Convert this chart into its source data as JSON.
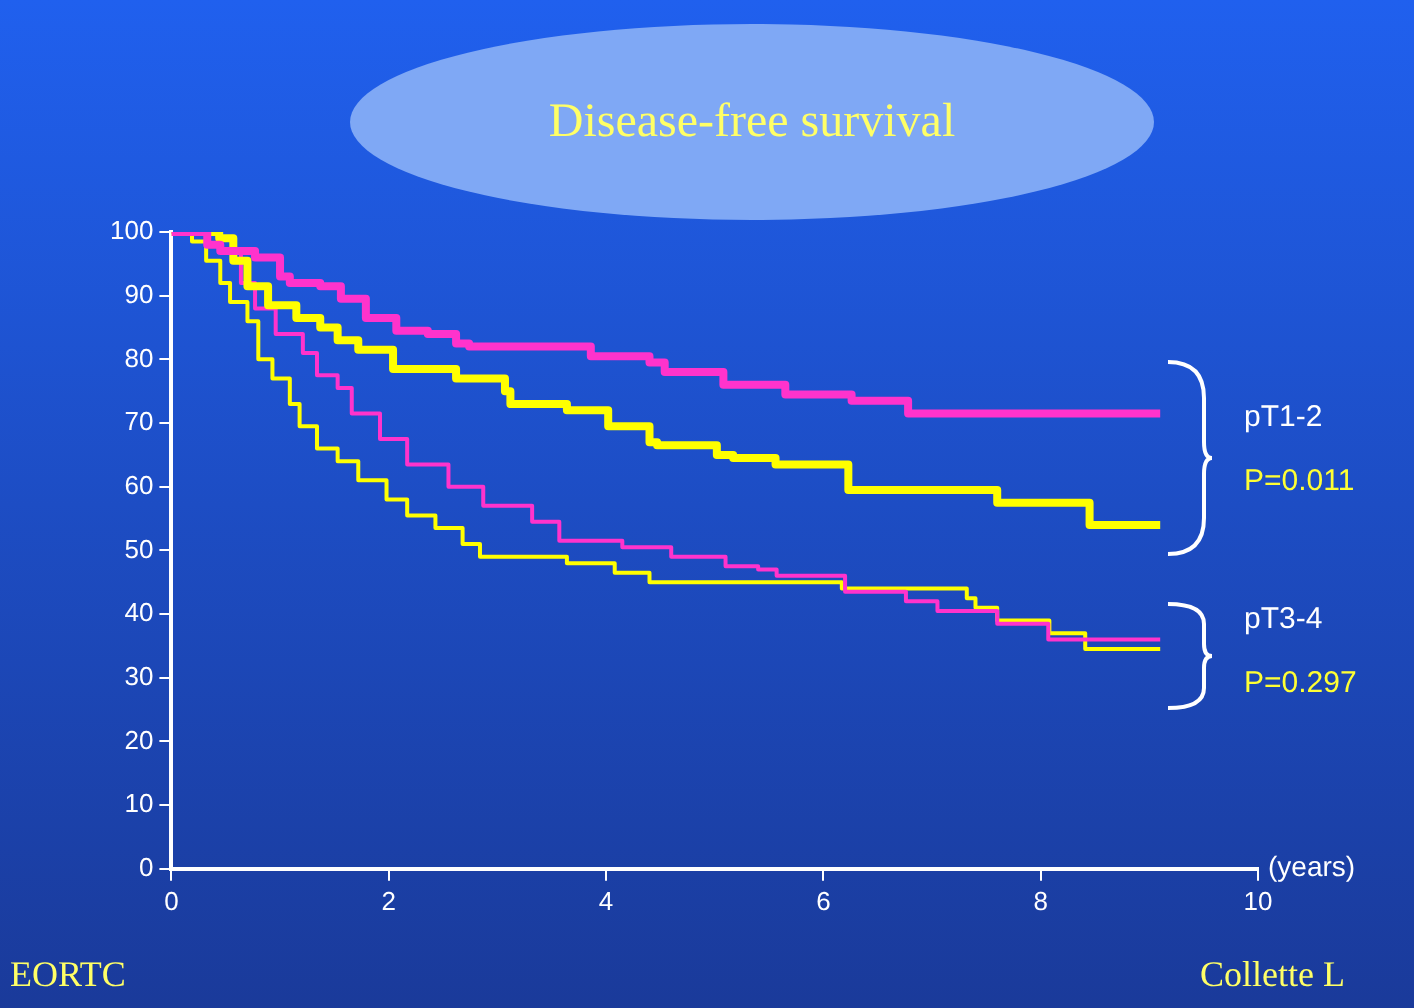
{
  "chart_data": {
    "type": "step",
    "title": "Disease-free survival",
    "xlabel": "(years)",
    "xlim": [
      0,
      10
    ],
    "xticks": [
      0,
      2,
      4,
      6,
      8,
      10
    ],
    "ylim": [
      0,
      100
    ],
    "yticks": [
      0,
      10,
      20,
      30,
      40,
      50,
      60,
      70,
      80,
      90,
      100
    ],
    "grid": false,
    "legend": false,
    "marker": "none",
    "line_style": "solid",
    "annotations": [
      "pT1-2",
      "P=0.011",
      "pT3-4",
      "P=0.297",
      "EORTC",
      "Collette L"
    ],
    "series": [
      {
        "color": "#ff33cc",
        "x": [
          0,
          0.33,
          0.45,
          0.77,
          1.0,
          1.09,
          1.37,
          1.56,
          1.79,
          2.07,
          2.36,
          2.62,
          2.74,
          3.86,
          4.4,
          4.54,
          5.08,
          5.65,
          6.26,
          6.78,
          9.1
        ],
        "values": [
          100,
          98,
          97,
          96,
          93,
          92,
          91.5,
          89.5,
          86.5,
          84.5,
          84,
          82.5,
          82,
          80.5,
          79.5,
          78,
          76,
          74.5,
          73.5,
          71.5,
          71.5
        ]
      },
      {
        "color": "#ffff00",
        "x": [
          0,
          0.44,
          0.57,
          0.7,
          0.89,
          1.15,
          1.37,
          1.53,
          1.72,
          2.04,
          2.62,
          3.07,
          3.12,
          3.64,
          4.02,
          4.4,
          4.47,
          5.02,
          5.17,
          5.56,
          6.23,
          7.6,
          8.45,
          9.1
        ],
        "values": [
          100,
          99,
          95.5,
          91.5,
          88.5,
          86.5,
          85,
          83,
          81.5,
          78.5,
          77,
          75,
          73,
          72,
          69.5,
          67,
          66.5,
          65,
          64.5,
          63.5,
          59.5,
          57.5,
          54,
          54
        ]
      },
      {
        "color": "#ff33cc",
        "x": [
          0,
          0.45,
          0.64,
          0.77,
          0.96,
          1.21,
          1.34,
          1.53,
          1.66,
          1.92,
          2.17,
          2.55,
          2.87,
          3.32,
          3.57,
          4.15,
          4.6,
          5.1,
          5.4,
          5.57,
          6.2,
          6.76,
          7.05,
          7.6,
          8.07,
          9.1
        ],
        "values": [
          100,
          97,
          92,
          88,
          84,
          81,
          77.5,
          75.5,
          71.5,
          67.5,
          63.5,
          60,
          57,
          54.5,
          51.5,
          50.5,
          49,
          47.5,
          47,
          46,
          43.5,
          42,
          40.5,
          38.5,
          36,
          36
        ]
      },
      {
        "color": "#ffff00",
        "x": [
          0,
          0.19,
          0.32,
          0.45,
          0.54,
          0.7,
          0.8,
          0.93,
          1.09,
          1.18,
          1.34,
          1.53,
          1.72,
          1.98,
          2.17,
          2.43,
          2.68,
          2.84,
          3.64,
          4.08,
          4.4,
          6.17,
          7.32,
          7.4,
          7.6,
          8.08,
          8.41,
          9.1
        ],
        "values": [
          100,
          98.5,
          95.5,
          92,
          89,
          86,
          80,
          77,
          73,
          69.5,
          66,
          64,
          61,
          58,
          55.5,
          53.5,
          51,
          49,
          48,
          46.5,
          45,
          44,
          42.5,
          41,
          39,
          37,
          34.5,
          34.5
        ]
      }
    ]
  }
}
